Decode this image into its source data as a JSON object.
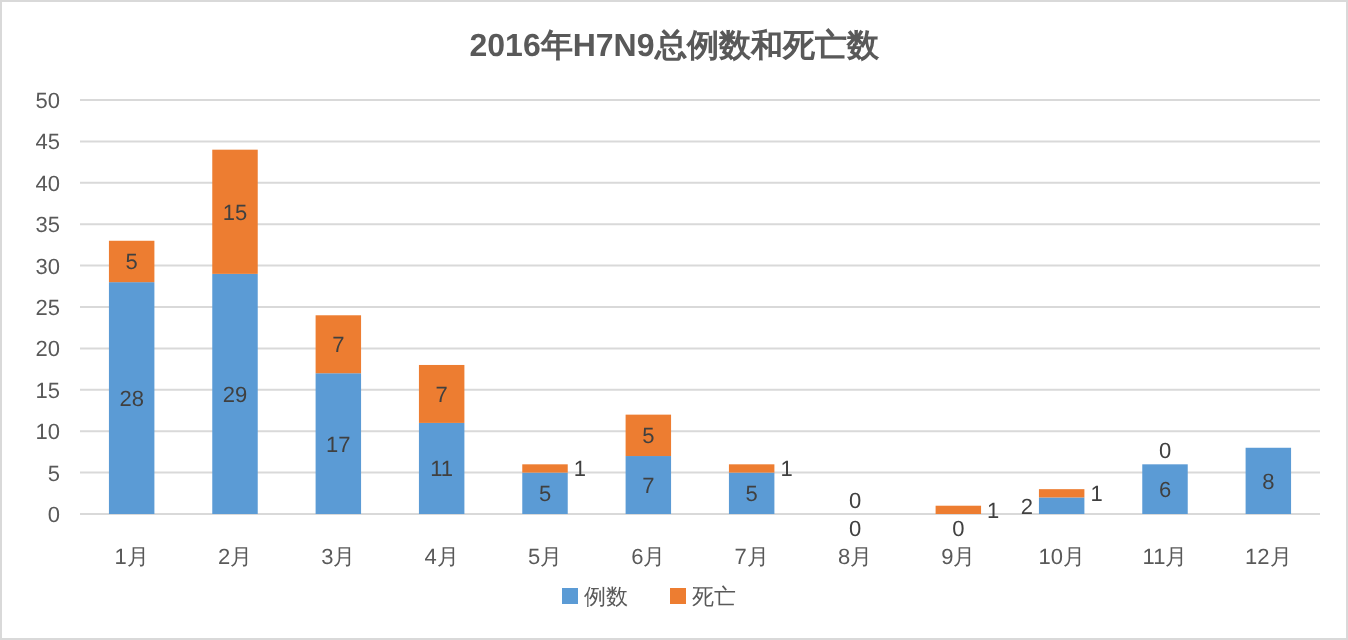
{
  "chart_data": {
    "type": "bar",
    "title": "2016年H7N9总例数和死亡数",
    "categories": [
      "1月",
      "2月",
      "3月",
      "4月",
      "5月",
      "6月",
      "7月",
      "8月",
      "9月",
      "10月",
      "11月",
      "12月"
    ],
    "stacked": true,
    "ylim": [
      0,
      50
    ],
    "yticks": [
      0,
      5,
      10,
      15,
      20,
      25,
      30,
      35,
      40,
      45,
      50
    ],
    "grid": "y",
    "legend": "bottom",
    "data_labels": true,
    "series": [
      {
        "name": "例数",
        "color": "#5b9bd5",
        "values": [
          28,
          29,
          17,
          11,
          5,
          7,
          5,
          0,
          0,
          2,
          6,
          8
        ]
      },
      {
        "name": "死亡",
        "color": "#ed7d31",
        "values": [
          5,
          15,
          7,
          7,
          1,
          5,
          1,
          0,
          1,
          1,
          0,
          null
        ]
      }
    ]
  }
}
